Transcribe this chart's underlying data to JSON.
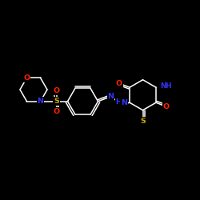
{
  "background_color": "#000000",
  "bond_color": "#ffffff",
  "atom_colors": {
    "N": "#3333ff",
    "O": "#ff2200",
    "S": "#ccaa00",
    "C": "#ffffff"
  },
  "figsize": [
    2.5,
    2.5
  ],
  "dpi": 100,
  "lw": 1.1,
  "fs": 6.8
}
